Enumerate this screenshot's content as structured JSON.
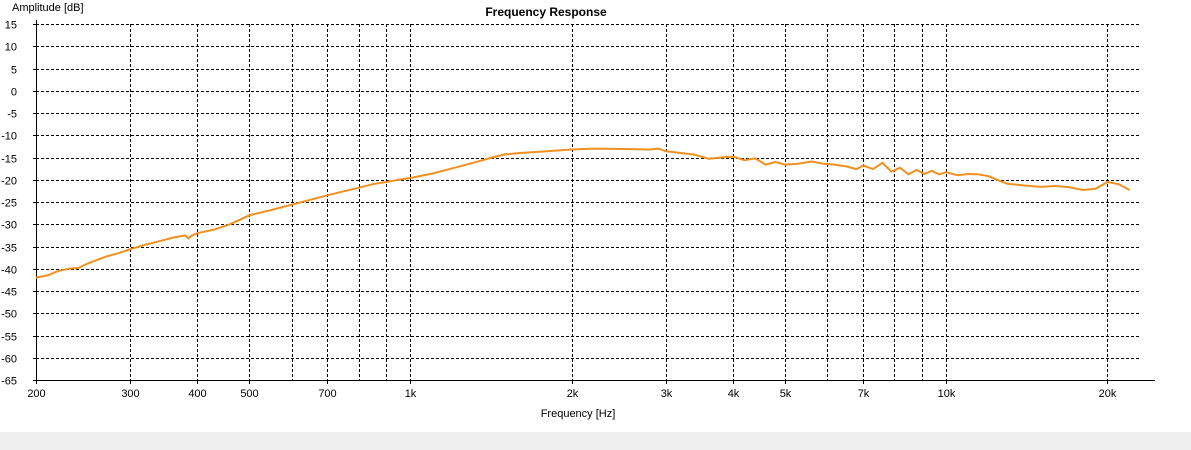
{
  "chart_data": {
    "type": "line",
    "title": "Frequency Response",
    "xlabel": "Frequency [Hz]",
    "ylabel": "Amplitude [dB]",
    "x_scale": "log",
    "xlim": [
      200,
      23000
    ],
    "ylim": [
      -65,
      15
    ],
    "grid": true,
    "x_gridlines": [
      300,
      400,
      500,
      600,
      700,
      800,
      900,
      1000,
      2000,
      3000,
      4000,
      5000,
      6000,
      7000,
      8000,
      9000,
      10000,
      20000
    ],
    "x_ticks": [
      {
        "value": 200,
        "label": "200"
      },
      {
        "value": 300,
        "label": "300"
      },
      {
        "value": 400,
        "label": "400"
      },
      {
        "value": 500,
        "label": "500"
      },
      {
        "value": 700,
        "label": "700"
      },
      {
        "value": 1000,
        "label": "1k"
      },
      {
        "value": 2000,
        "label": "2k"
      },
      {
        "value": 3000,
        "label": "3k"
      },
      {
        "value": 4000,
        "label": "4k"
      },
      {
        "value": 5000,
        "label": "5k"
      },
      {
        "value": 7000,
        "label": "7k"
      },
      {
        "value": 10000,
        "label": "10k"
      },
      {
        "value": 20000,
        "label": "20k"
      }
    ],
    "y_ticks": [
      {
        "value": 15,
        "label": "15"
      },
      {
        "value": 10,
        "label": "10"
      },
      {
        "value": 5,
        "label": "5"
      },
      {
        "value": 0,
        "label": "0"
      },
      {
        "value": -5,
        "label": "-5"
      },
      {
        "value": -10,
        "label": "-10"
      },
      {
        "value": -15,
        "label": "-15"
      },
      {
        "value": -20,
        "label": "-20"
      },
      {
        "value": -25,
        "label": "-25"
      },
      {
        "value": -30,
        "label": "-30"
      },
      {
        "value": -35,
        "label": "-35"
      },
      {
        "value": -40,
        "label": "-40"
      },
      {
        "value": -45,
        "label": "-45"
      },
      {
        "value": -50,
        "label": "-50"
      },
      {
        "value": -55,
        "label": "-55"
      },
      {
        "value": -60,
        "label": "-60"
      },
      {
        "value": -65,
        "label": "-65"
      }
    ],
    "series": [
      {
        "color": "#f0901e",
        "points": [
          [
            200,
            -42.0
          ],
          [
            210,
            -41.5
          ],
          [
            220,
            -40.5
          ],
          [
            230,
            -40.0
          ],
          [
            240,
            -39.8
          ],
          [
            250,
            -38.8
          ],
          [
            260,
            -38.0
          ],
          [
            270,
            -37.3
          ],
          [
            285,
            -36.5
          ],
          [
            300,
            -35.6
          ],
          [
            320,
            -34.6
          ],
          [
            340,
            -33.8
          ],
          [
            360,
            -33.0
          ],
          [
            380,
            -32.5
          ],
          [
            385,
            -33.2
          ],
          [
            390,
            -32.6
          ],
          [
            400,
            -32.0
          ],
          [
            430,
            -31.2
          ],
          [
            460,
            -30.0
          ],
          [
            480,
            -29.0
          ],
          [
            500,
            -28.0
          ],
          [
            550,
            -26.8
          ],
          [
            600,
            -25.6
          ],
          [
            650,
            -24.5
          ],
          [
            700,
            -23.5
          ],
          [
            750,
            -22.6
          ],
          [
            800,
            -21.8
          ],
          [
            850,
            -21.0
          ],
          [
            900,
            -20.5
          ],
          [
            950,
            -20.0
          ],
          [
            1000,
            -19.6
          ],
          [
            1100,
            -18.6
          ],
          [
            1200,
            -17.4
          ],
          [
            1300,
            -16.3
          ],
          [
            1400,
            -15.2
          ],
          [
            1500,
            -14.3
          ],
          [
            1600,
            -14.0
          ],
          [
            1800,
            -13.6
          ],
          [
            2000,
            -13.2
          ],
          [
            2200,
            -13.0
          ],
          [
            2500,
            -13.1
          ],
          [
            2800,
            -13.2
          ],
          [
            2900,
            -13.0
          ],
          [
            3000,
            -13.6
          ],
          [
            3200,
            -14.0
          ],
          [
            3400,
            -14.4
          ],
          [
            3600,
            -15.3
          ],
          [
            3800,
            -15.0
          ],
          [
            4000,
            -14.8
          ],
          [
            4200,
            -15.6
          ],
          [
            4400,
            -15.2
          ],
          [
            4600,
            -16.6
          ],
          [
            4800,
            -16.0
          ],
          [
            5000,
            -16.6
          ],
          [
            5300,
            -16.4
          ],
          [
            5600,
            -15.9
          ],
          [
            5900,
            -16.4
          ],
          [
            6200,
            -16.6
          ],
          [
            6500,
            -17.0
          ],
          [
            6800,
            -17.6
          ],
          [
            7000,
            -16.8
          ],
          [
            7300,
            -17.6
          ],
          [
            7600,
            -16.2
          ],
          [
            7900,
            -18.2
          ],
          [
            8200,
            -17.3
          ],
          [
            8500,
            -18.8
          ],
          [
            8800,
            -17.8
          ],
          [
            9100,
            -18.7
          ],
          [
            9400,
            -18.0
          ],
          [
            9700,
            -18.8
          ],
          [
            10000,
            -18.3
          ],
          [
            10500,
            -19.0
          ],
          [
            11000,
            -18.7
          ],
          [
            11500,
            -18.8
          ],
          [
            12000,
            -19.2
          ],
          [
            12500,
            -20.1
          ],
          [
            13000,
            -20.9
          ],
          [
            14000,
            -21.3
          ],
          [
            15000,
            -21.6
          ],
          [
            16000,
            -21.4
          ],
          [
            17000,
            -21.7
          ],
          [
            18000,
            -22.3
          ],
          [
            19000,
            -22.0
          ],
          [
            20000,
            -20.5
          ],
          [
            21000,
            -21.0
          ],
          [
            22000,
            -22.3
          ]
        ]
      }
    ]
  }
}
